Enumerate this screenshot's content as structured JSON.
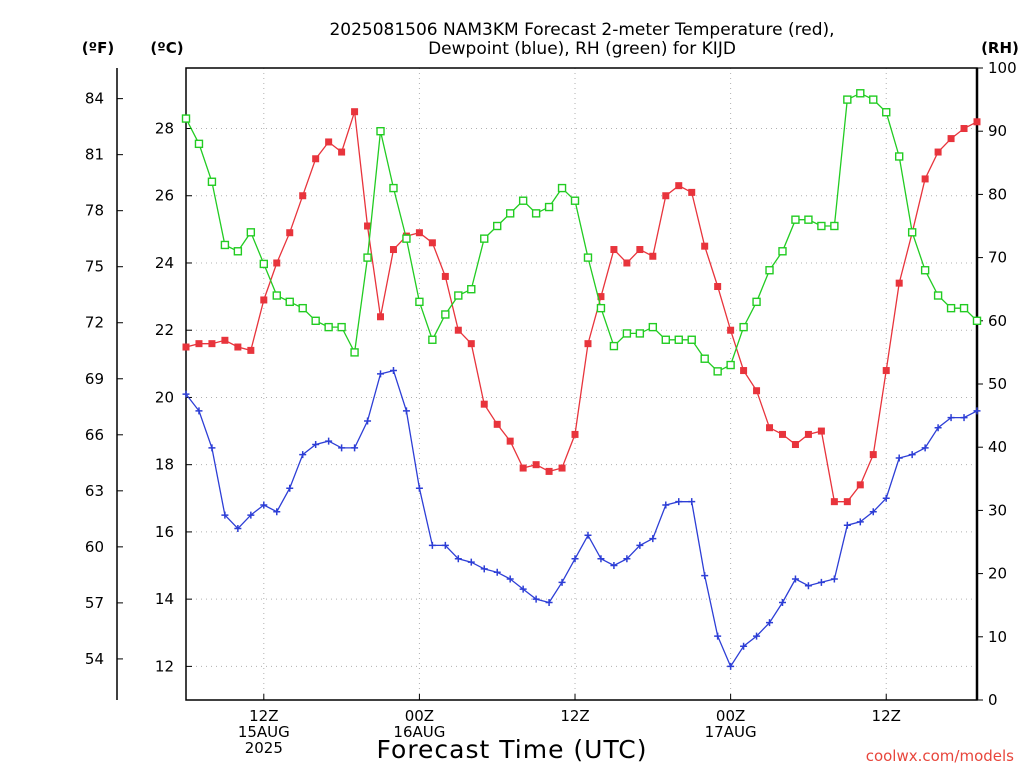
{
  "chart_data": {
    "type": "line",
    "title_lines": [
      "2025081506 NAM3KM Forecast 2-meter Temperature (red),",
      "Dewpoint (blue), RH (green) for KIJD"
    ],
    "xlabel": "Forecast Time (UTC)",
    "credit": "coolwx.com/models",
    "unit_left_f": "(ºF)",
    "unit_left_c": "(ºC)",
    "unit_right": "(RH)",
    "x_hour_range": [
      6,
      67
    ],
    "x_ticks": [
      {
        "hour": 12,
        "lines": [
          "12Z",
          "15AUG",
          "2025"
        ]
      },
      {
        "hour": 24,
        "lines": [
          "00Z",
          "16AUG"
        ]
      },
      {
        "hour": 36,
        "lines": [
          "12Z"
        ]
      },
      {
        "hour": 48,
        "lines": [
          "00Z",
          "17AUG"
        ]
      },
      {
        "hour": 60,
        "lines": [
          "12Z"
        ]
      }
    ],
    "ylim_c": [
      11,
      29.8
    ],
    "ylim_rh": [
      0,
      100
    ],
    "y_ticks_c": [
      12,
      14,
      16,
      18,
      20,
      22,
      24,
      26,
      28
    ],
    "y_ticks_f": [
      54,
      57,
      60,
      63,
      66,
      69,
      72,
      75,
      78,
      81,
      84
    ],
    "y_ticks_rh": [
      0,
      10,
      20,
      30,
      40,
      50,
      60,
      70,
      80,
      90,
      100
    ],
    "grid": true,
    "x_hours": [
      6,
      7,
      8,
      9,
      10,
      11,
      12,
      13,
      14,
      15,
      16,
      17,
      18,
      19,
      20,
      21,
      22,
      23,
      24,
      25,
      26,
      27,
      28,
      29,
      30,
      31,
      32,
      33,
      34,
      35,
      36,
      37,
      38,
      39,
      40,
      41,
      42,
      43,
      44,
      45,
      46,
      47,
      48,
      49,
      50,
      51,
      52,
      53,
      54,
      55,
      56,
      57,
      58,
      59,
      60,
      61,
      62,
      63,
      64,
      65,
      66,
      67
    ],
    "series": [
      {
        "name": "Temperature",
        "axis": "c",
        "color": "#e8343c",
        "marker": "filled-square",
        "values": [
          21.5,
          21.6,
          21.6,
          21.7,
          21.5,
          21.4,
          22.9,
          24.0,
          24.9,
          26.0,
          27.1,
          27.6,
          27.3,
          28.5,
          25.1,
          22.4,
          24.4,
          24.8,
          24.9,
          24.6,
          23.6,
          22.0,
          21.6,
          19.8,
          19.2,
          18.7,
          17.9,
          18.0,
          17.8,
          17.9,
          18.9,
          21.6,
          23.0,
          24.4,
          24.0,
          24.4,
          24.2,
          26.0,
          26.3,
          26.1,
          24.5,
          23.3,
          22.0,
          20.8,
          20.2,
          19.1,
          18.9,
          18.6,
          18.9,
          19.0,
          16.9,
          16.9,
          17.4,
          18.3,
          20.8,
          23.4,
          24.9,
          26.5,
          27.3,
          27.7,
          28.0,
          28.2
        ]
      },
      {
        "name": "Dewpoint",
        "axis": "c",
        "color": "#2d3ed6",
        "marker": "plus",
        "values": [
          20.1,
          19.6,
          18.5,
          16.5,
          16.1,
          16.5,
          16.8,
          16.6,
          17.3,
          18.3,
          18.6,
          18.7,
          18.5,
          18.5,
          19.3,
          20.7,
          20.8,
          19.6,
          17.3,
          15.6,
          15.6,
          15.2,
          15.1,
          14.9,
          14.8,
          14.6,
          14.3,
          14.0,
          13.9,
          14.5,
          15.2,
          15.9,
          15.2,
          15.0,
          15.2,
          15.6,
          15.8,
          16.8,
          16.9,
          16.9,
          14.7,
          12.9,
          12.0,
          12.6,
          12.9,
          13.3,
          13.9,
          14.6,
          14.4,
          14.5,
          14.6,
          16.2,
          16.3,
          16.6,
          17.0,
          18.2,
          18.3,
          18.5,
          19.1,
          19.4,
          19.4,
          19.6
        ]
      },
      {
        "name": "RH",
        "axis": "rh",
        "color": "#22cc22",
        "marker": "open-square",
        "values": [
          92,
          88,
          82,
          72,
          71,
          74,
          69,
          64,
          63,
          62,
          60,
          59,
          59,
          55,
          70,
          90,
          81,
          73,
          63,
          57,
          61,
          64,
          65,
          73,
          75,
          77,
          79,
          77,
          78,
          81,
          79,
          70,
          62,
          56,
          58,
          58,
          59,
          57,
          57,
          57,
          54,
          52,
          53,
          59,
          63,
          68,
          71,
          76,
          76,
          75,
          75,
          95,
          96,
          95,
          93,
          86,
          74,
          68,
          64,
          62,
          62,
          60
        ]
      }
    ]
  }
}
